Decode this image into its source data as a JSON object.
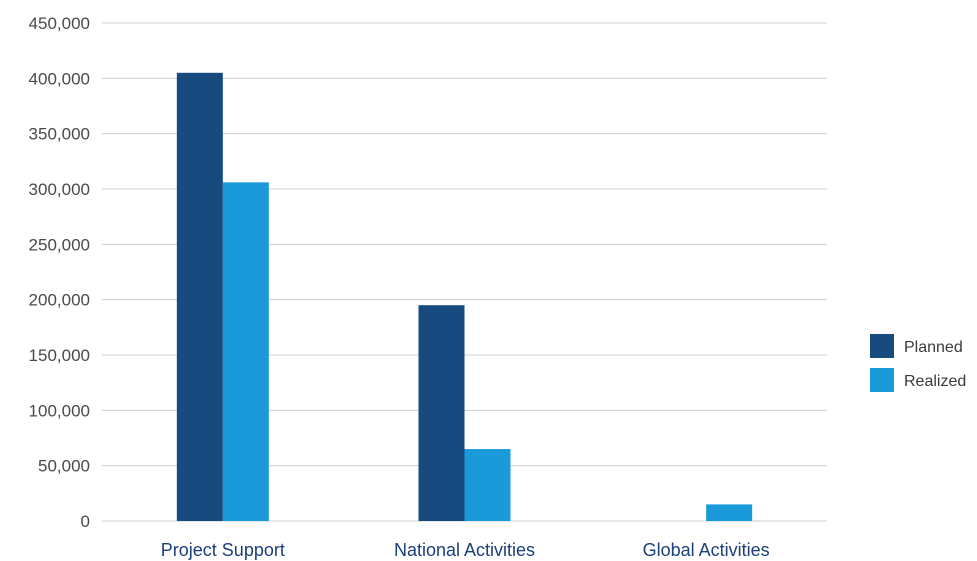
{
  "chart_data": {
    "type": "bar",
    "categories": [
      "Project Support",
      "National Activities",
      "Global Activities"
    ],
    "series": [
      {
        "name": "Planned",
        "values": [
          405000,
          195000,
          0
        ],
        "color": "#174a7e"
      },
      {
        "name": "Realized",
        "values": [
          306000,
          65000,
          15000
        ],
        "color": "#1a9ad9"
      }
    ],
    "y_ticks": [
      "0",
      "50,000",
      "100,000",
      "150,000",
      "200,000",
      "250,000",
      "300,000",
      "350,000",
      "400,000",
      "450,000"
    ],
    "ylim": [
      0,
      450000
    ],
    "grid": true,
    "legend_position": "right",
    "title": "",
    "xlabel": "",
    "ylabel": ""
  }
}
